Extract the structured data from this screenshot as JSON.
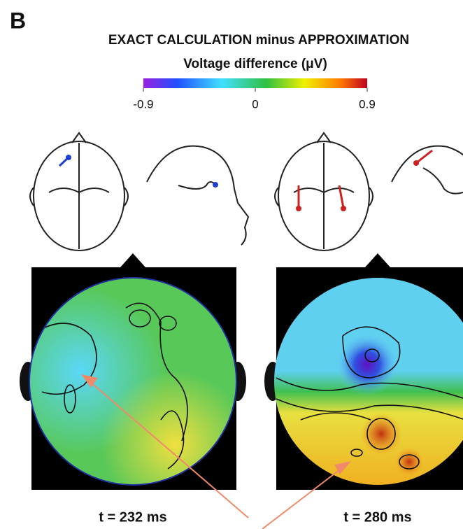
{
  "panel_label": "B",
  "title": "EXACT CALCULATION minus APPROXIMATION",
  "subtitle": "Voltage difference (μV)",
  "colorbar": {
    "min": -0.9,
    "max": 0.9,
    "ticks": [
      -0.9,
      0,
      0.9
    ]
  },
  "maps": [
    {
      "label": "t = 232 ms"
    },
    {
      "label": "t = 280 ms"
    }
  ]
}
